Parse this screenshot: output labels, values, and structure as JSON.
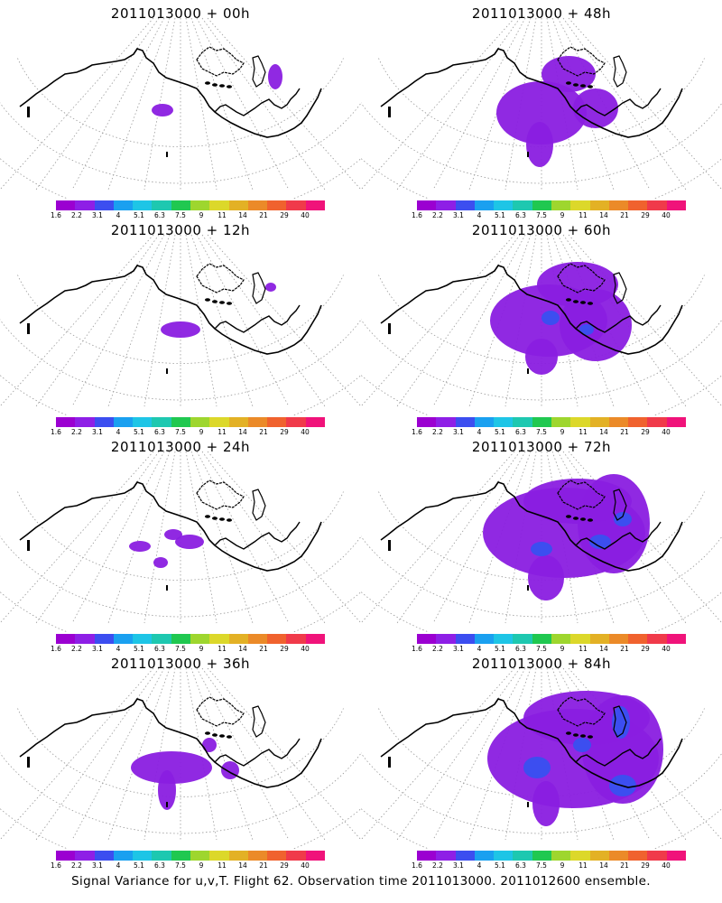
{
  "panels": [
    {
      "title": "2011013000 + 00h",
      "blobs": [
        [
          180,
          122,
          12,
          7
        ],
        [
          305,
          85,
          8,
          14
        ]
      ],
      "blue": []
    },
    {
      "title": "2011013000 + 12h",
      "blobs": [
        [
          200,
          365,
          22,
          9
        ],
        [
          300,
          318,
          6,
          5
        ]
      ],
      "blue": []
    },
    {
      "title": "2011013000 + 24h",
      "blobs": [
        [
          155,
          605,
          12,
          6
        ],
        [
          210,
          600,
          16,
          8
        ],
        [
          178,
          623,
          8,
          6
        ],
        [
          192,
          592,
          10,
          6
        ]
      ],
      "blue": []
    },
    {
      "title": "2011013000 + 36h",
      "blobs": [
        [
          190,
          850,
          45,
          18
        ],
        [
          185,
          875,
          10,
          22
        ],
        [
          255,
          853,
          10,
          10
        ],
        [
          232,
          825,
          8,
          8
        ]
      ],
      "blue": []
    },
    {
      "title": "2011013000 + 48h",
      "blobs": [
        [
          600,
          125,
          50,
          35
        ],
        [
          598,
          160,
          15,
          25
        ],
        [
          660,
          120,
          25,
          22
        ],
        [
          630,
          82,
          30,
          20
        ]
      ],
      "blue": []
    },
    {
      "title": "2011013000 + 60h",
      "blobs": [
        [
          608,
          355,
          65,
          40
        ],
        [
          600,
          395,
          18,
          20
        ],
        [
          660,
          360,
          40,
          40
        ],
        [
          640,
          315,
          45,
          25
        ]
      ],
      "blue": [
        [
          610,
          352,
          10,
          8
        ],
        [
          650,
          365,
          8,
          6
        ]
      ]
    },
    {
      "title": "2011013000 + 72h",
      "blobs": [
        [
          625,
          590,
          90,
          50
        ],
        [
          605,
          640,
          20,
          25
        ],
        [
          680,
          580,
          40,
          55
        ],
        [
          640,
          555,
          60,
          25
        ]
      ],
      "blue": [
        [
          600,
          608,
          12,
          8
        ],
        [
          665,
          600,
          12,
          8
        ],
        [
          690,
          575,
          10,
          8
        ]
      ]
    },
    {
      "title": "2011013000 + 84h",
      "blobs": [
        [
          635,
          840,
          95,
          55
        ],
        [
          605,
          890,
          15,
          25
        ],
        [
          690,
          830,
          45,
          60
        ],
        [
          650,
          795,
          70,
          30
        ]
      ],
      "blue": [
        [
          595,
          850,
          15,
          12
        ],
        [
          690,
          870,
          15,
          12
        ],
        [
          688,
          800,
          10,
          18
        ],
        [
          645,
          825,
          10,
          8
        ]
      ]
    }
  ],
  "colorbar": {
    "colors": [
      "#9b00d1",
      "#8e1fe6",
      "#3c4ef0",
      "#1aa0f0",
      "#1ec5e6",
      "#1ec8b0",
      "#20c850",
      "#9ed62e",
      "#dcd82a",
      "#e3b125",
      "#eb8a28",
      "#f0622e",
      "#f03a4a",
      "#f0137a"
    ],
    "labels": [
      "1.6",
      "2.2",
      "3.1",
      "4",
      "5.1",
      "6.3",
      "7.5",
      "9",
      "11",
      "14",
      "21",
      "29",
      "40"
    ]
  },
  "footer": "Signal Variance for u,v,T. Flight 62. Observation time 2011013000. 2011012600 ensemble."
}
